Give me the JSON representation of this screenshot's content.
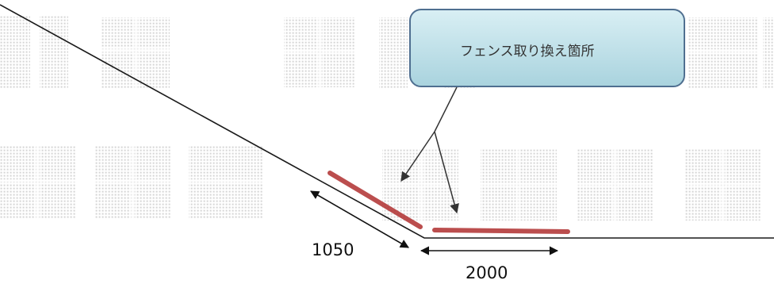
{
  "callout": {
    "label": "フェンス取り換え箇所"
  },
  "dimensions": {
    "slope_length": "1050",
    "flat_length": "2000"
  },
  "watermark": {
    "text": "禁止転載禁止 転載禁止"
  },
  "colors": {
    "ground_line": "#1a1a1a",
    "fence_highlight": "#b03030",
    "callout_fill": "#bfe2ea",
    "callout_border": "#4f6f90",
    "watermark_dots": "#d6d6d6",
    "arrow": "#111111"
  }
}
